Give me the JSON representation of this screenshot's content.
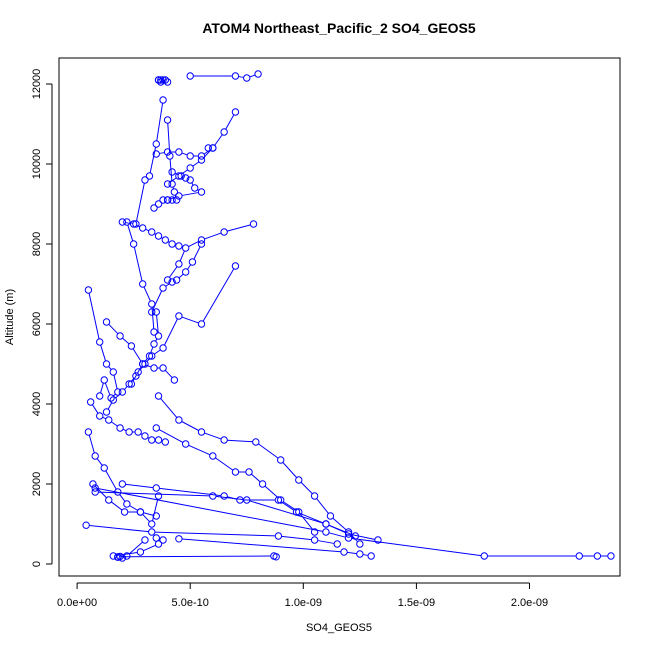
{
  "chart_data": {
    "type": "line",
    "title": "ATOM4 Northeast_Pacific_2 SO4_GEOS5",
    "xlabel": "SO4_GEOS5",
    "ylabel": "Altitude (m)",
    "xlim": [
      -8e-11,
      2.4e-09
    ],
    "ylim": [
      -300,
      12650
    ],
    "x_ticks": [
      0,
      5e-10,
      1e-09,
      1.5e-09,
      2e-09
    ],
    "x_tick_labels": [
      "0.0e+00",
      "5.0e-10",
      "1.0e-09",
      "1.5e-09",
      "2.0e-09"
    ],
    "y_ticks": [
      0,
      2000,
      4000,
      6000,
      8000,
      10000,
      12000
    ],
    "y_tick_labels": [
      "0",
      "2000",
      "4000",
      "6000",
      "8000",
      "10000",
      "12000"
    ],
    "grid": false,
    "marker": "open-circle",
    "color": "#0000ff",
    "series": [
      {
        "x": [
          5e-10,
          7e-10,
          7.5e-10,
          8e-10
        ],
        "y": [
          12200,
          12200,
          12150,
          12250
        ]
      },
      {
        "x": [
          3.6e-10,
          3.7e-10,
          3.8e-10,
          3.9e-10,
          4e-10,
          3.6e-10,
          3.7e-10
        ],
        "y": [
          12100,
          12100,
          12100,
          12100,
          12050,
          12100,
          12050
        ]
      },
      {
        "x": [
          3.8e-10,
          3.5e-10,
          3.2e-10,
          3e-10,
          2.6e-10,
          2.2e-10,
          2.5e-10,
          2.9e-10,
          3.3e-10,
          3.4e-10
        ],
        "y": [
          11600,
          10500,
          9700,
          9600,
          8500,
          8550,
          8000,
          7000,
          6500,
          5800
        ]
      },
      {
        "x": [
          4e-10,
          4.1e-10,
          4.2e-10,
          4.3e-10,
          4.4e-10,
          4.2e-10,
          4e-10,
          3.8e-10,
          3.6e-10,
          3.4e-10
        ],
        "y": [
          11100,
          10200,
          9500,
          9300,
          9100,
          9100,
          9100,
          9100,
          9000,
          8900
        ]
      },
      {
        "x": [
          7e-10,
          6.5e-10,
          6e-10,
          5.5e-10,
          5e-10,
          4.5e-10,
          4e-10,
          3.5e-10
        ],
        "y": [
          11300,
          10800,
          10400,
          10200,
          10200,
          10300,
          10300,
          10250
        ]
      },
      {
        "x": [
          5.8e-10,
          6e-10,
          5.5e-10,
          5e-10,
          4.5e-10,
          4e-10
        ],
        "y": [
          10400,
          10400,
          10100,
          9900,
          9700,
          9500
        ]
      },
      {
        "x": [
          4.2e-10,
          4.6e-10,
          4.8e-10,
          5e-10,
          5.2e-10,
          5.5e-10,
          4.5e-10,
          4e-10
        ],
        "y": [
          9800,
          9700,
          9650,
          9600,
          9400,
          9300,
          9200,
          9100
        ]
      },
      {
        "x": [
          2e-10,
          2.5e-10,
          2.9e-10,
          3.3e-10,
          3.6e-10,
          3.9e-10,
          4.2e-10,
          4.5e-10
        ],
        "y": [
          8550,
          8500,
          8400,
          8300,
          8200,
          8100,
          8000,
          7950
        ]
      },
      {
        "x": [
          7.8e-10,
          6.5e-10,
          5.5e-10,
          4.8e-10,
          4.5e-10,
          4e-10
        ],
        "y": [
          8500,
          8300,
          8100,
          7900,
          7500,
          7100
        ]
      },
      {
        "x": [
          5.5e-10,
          5.1e-10,
          4.8e-10,
          4.4e-10,
          4.2e-10,
          3.8e-10,
          3.3e-10
        ],
        "y": [
          8000,
          7550,
          7300,
          7100,
          7050,
          6900,
          6300
        ]
      },
      {
        "x": [
          7e-10,
          5.5e-10,
          4.5e-10,
          3.8e-10,
          3.3e-10,
          3e-10,
          2.7e-10,
          2.4e-10
        ],
        "y": [
          7450,
          6000,
          6200,
          5400,
          5200,
          5000,
          4800,
          4500
        ]
      },
      {
        "x": [
          5e-11,
          1e-10,
          1.3e-10,
          1.6e-10,
          1.8e-10,
          1.5e-10,
          1.2e-10,
          1e-10
        ],
        "y": [
          6850,
          5550,
          5000,
          4800,
          4300,
          4150,
          4600,
          4200
        ]
      },
      {
        "x": [
          1.3e-10,
          1.9e-10,
          2.4e-10,
          2.9e-10,
          3.4e-10,
          3.8e-10,
          4.3e-10
        ],
        "y": [
          6050,
          5700,
          5450,
          5000,
          4900,
          4900,
          4600
        ]
      },
      {
        "x": [
          3.5e-10,
          3.6e-10,
          3.4e-10,
          3.2e-10,
          2.9e-10,
          2.6e-10,
          2.3e-10,
          2e-10,
          1.6e-10,
          1.3e-10
        ],
        "y": [
          6300,
          5700,
          5500,
          5200,
          5000,
          4700,
          4500,
          4300,
          4100,
          3800
        ]
      },
      {
        "x": [
          6e-11,
          1e-10,
          1.4e-10,
          1.9e-10,
          2.3e-10,
          2.7e-10,
          3e-10,
          3.3e-10,
          3.6e-10,
          3.9e-10
        ],
        "y": [
          4050,
          3700,
          3600,
          3400,
          3300,
          3300,
          3200,
          3100,
          3100,
          3050
        ]
      },
      {
        "x": [
          3.6e-10,
          4.5e-10,
          5.5e-10,
          6.5e-10,
          7.9e-10,
          9e-10,
          9.8e-10,
          1.05e-09,
          1.12e-09,
          1.2e-09,
          1.25e-09
        ],
        "y": [
          4200,
          3600,
          3300,
          3100,
          3050,
          2600,
          2100,
          1700,
          1200,
          800,
          500
        ]
      },
      {
        "x": [
          5e-11,
          8e-11,
          1.2e-10,
          1.8e-10,
          2.2e-10,
          2.8e-10,
          3.3e-10,
          3.6e-10
        ],
        "y": [
          3300,
          2700,
          2400,
          1800,
          1500,
          1300,
          1000,
          1700
        ]
      },
      {
        "x": [
          3.5e-10,
          4.8e-10,
          6e-10,
          7e-10,
          7.6e-10,
          8.2e-10,
          9e-10,
          9.8e-10,
          1.05e-09
        ],
        "y": [
          3400,
          3000,
          2700,
          2300,
          2300,
          2000,
          1600,
          1300,
          800
        ]
      },
      {
        "x": [
          7e-11,
          1.4e-10,
          2.1e-10,
          2.8e-10,
          3.5e-10
        ],
        "y": [
          2000,
          1600,
          1300,
          1300,
          1200
        ]
      },
      {
        "x": [
          8e-11,
          6e-10,
          7.5e-10,
          1.1e-09,
          1.23e-09
        ],
        "y": [
          1800,
          1700,
          1600,
          1000,
          700
        ]
      },
      {
        "x": [
          2e-10,
          3.5e-10,
          6.5e-10,
          7.2e-10,
          8.9e-10,
          9.7e-10,
          1.1e-09,
          1.2e-09,
          1.33e-09
        ],
        "y": [
          2000,
          1900,
          1700,
          1600,
          1600,
          1300,
          1000,
          750,
          600
        ]
      },
      {
        "x": [
          4e-11,
          3.3e-10,
          8.9e-10,
          1.05e-09,
          1.15e-09
        ],
        "y": [
          970,
          800,
          700,
          600,
          500
        ]
      },
      {
        "x": [
          4.5e-10,
          1.18e-09,
          1.25e-09,
          1.3e-09
        ],
        "y": [
          630,
          300,
          250,
          200
        ]
      },
      {
        "x": [
          8e-11,
          1.1e-09,
          1.2e-09,
          1.8e-09,
          2.22e-09,
          2.3e-09,
          2.36e-09
        ],
        "y": [
          1900,
          800,
          650,
          200,
          200,
          200,
          200
        ]
      },
      {
        "x": [
          3.5e-10,
          3.8e-10,
          3.6e-10,
          2.8e-10,
          1.6e-10,
          1.8e-10,
          2e-10,
          1.9e-10
        ],
        "y": [
          650,
          600,
          500,
          300,
          200,
          170,
          150,
          190
        ]
      },
      {
        "x": [
          3e-10,
          2.2e-10,
          1.8e-10,
          8.7e-10,
          8.8e-10
        ],
        "y": [
          600,
          200,
          180,
          200,
          180
        ]
      }
    ]
  }
}
